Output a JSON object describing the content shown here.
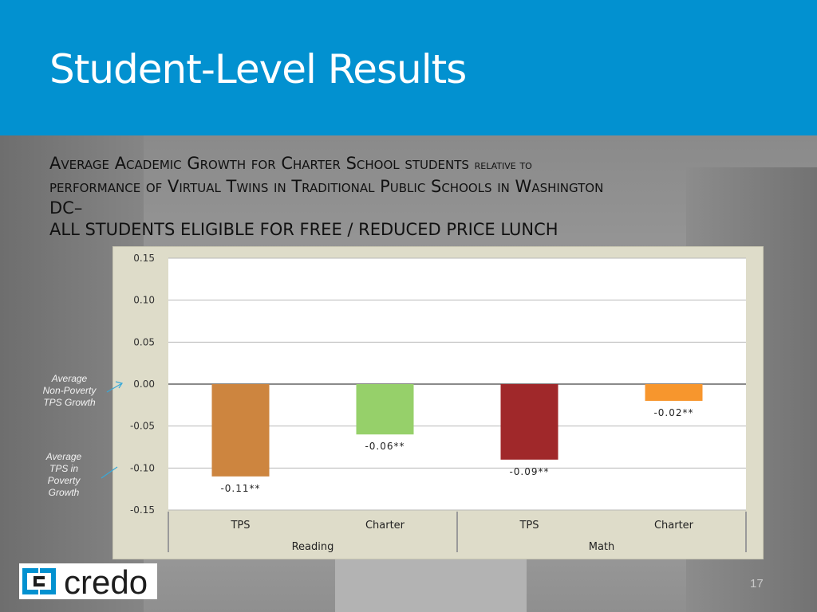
{
  "header": {
    "title": "Student-Level Results"
  },
  "subtitle": {
    "line1_a": "Average Academic Growth for Charter School students",
    "line1_b": "relative to",
    "line2": "performance of Virtual Twins in Traditional Public Schools in Washington",
    "line3": "DC–",
    "line4": "ALL STUDENTS ELIGIBLE FOR FREE / REDUCED PRICE LUNCH"
  },
  "annotations": {
    "non_poverty": [
      "Average",
      "Non-Poverty",
      "TPS Growth"
    ],
    "poverty": [
      "Average",
      "TPS in",
      "Poverty",
      "Growth"
    ]
  },
  "chart_data": {
    "type": "bar",
    "categories": [
      "TPS",
      "Charter",
      "TPS",
      "Charter"
    ],
    "groups": [
      {
        "label": "Reading",
        "categories": [
          "TPS",
          "Charter"
        ]
      },
      {
        "label": "Math",
        "categories": [
          "TPS",
          "Charter"
        ]
      }
    ],
    "values": [
      -0.11,
      -0.06,
      -0.09,
      -0.02
    ],
    "data_labels": [
      "-0.11**",
      "-0.06**",
      "-0.09**",
      "-0.02**"
    ],
    "colors": [
      "#cd853f",
      "#96d06a",
      "#a0282a",
      "#f7962d"
    ],
    "y_ticks": [
      "0.15",
      "0.10",
      "0.05",
      "0.00",
      "-0.05",
      "-0.10",
      "-0.15"
    ],
    "ylim": [
      -0.15,
      0.15
    ],
    "grid": true
  },
  "logo": {
    "text": "credo"
  },
  "footer": {
    "slide_number": "17"
  }
}
